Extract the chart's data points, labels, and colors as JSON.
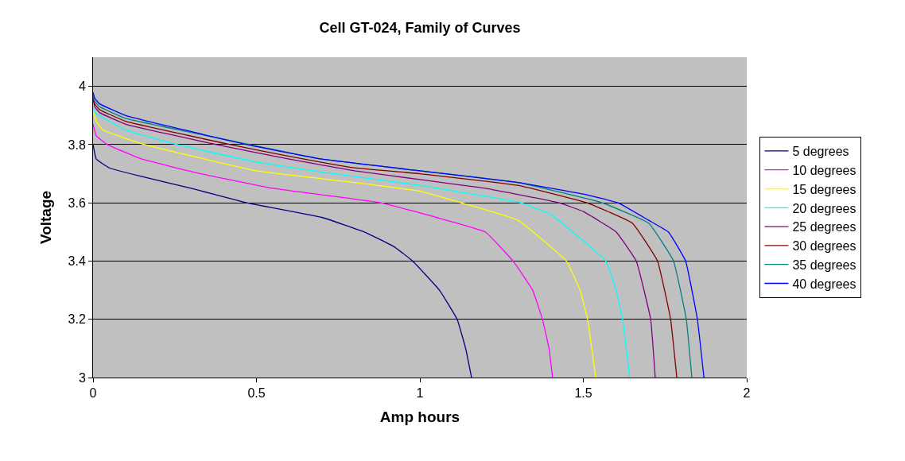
{
  "chart_data": {
    "type": "line",
    "title": "Cell GT-024, Family of Curves",
    "xlabel": "Amp hours",
    "ylabel": "Voltage",
    "xlim": [
      0,
      2
    ],
    "xticks": [
      0,
      0.5,
      1,
      1.5,
      2
    ],
    "ylim": [
      3,
      4.1
    ],
    "yticks": [
      3,
      3.2,
      3.4,
      3.6,
      3.8,
      4
    ],
    "grid": "y",
    "legend": "right",
    "marker": "none",
    "line_style": "solid",
    "series": [
      {
        "name": "5 degrees",
        "color": "#000080",
        "x": [
          0,
          0.01,
          0.05,
          0.15,
          0.3,
          0.47,
          0.7,
          0.83,
          0.92,
          0.978,
          1.06,
          1.114,
          1.14,
          1.158
        ],
        "values": [
          3.8,
          3.75,
          3.72,
          3.69,
          3.65,
          3.6,
          3.55,
          3.5,
          3.45,
          3.4,
          3.3,
          3.2,
          3.1,
          3.0
        ]
      },
      {
        "name": "10 degrees",
        "color": "#ff00ff",
        "x": [
          0,
          0.01,
          0.044,
          0.15,
          0.33,
          0.55,
          0.88,
          1.05,
          1.2,
          1.285,
          1.345,
          1.375,
          1.395,
          1.406
        ],
        "values": [
          3.87,
          3.83,
          3.8,
          3.75,
          3.7,
          3.65,
          3.6,
          3.55,
          3.5,
          3.4,
          3.3,
          3.2,
          3.1,
          3.0
        ]
      },
      {
        "name": "15 degrees",
        "color": "#ffff00",
        "x": [
          0,
          0.01,
          0.03,
          0.158,
          0.5,
          0.8,
          1.0,
          1.127,
          1.3,
          1.448,
          1.49,
          1.513,
          1.538
        ],
        "values": [
          3.92,
          3.88,
          3.85,
          3.8,
          3.71,
          3.67,
          3.64,
          3.6,
          3.54,
          3.4,
          3.3,
          3.2,
          3.0
        ]
      },
      {
        "name": "20 degrees",
        "color": "#00ffff",
        "x": [
          0,
          0.005,
          0.02,
          0.1,
          0.258,
          0.5,
          0.8,
          1.0,
          1.309,
          1.4,
          1.569,
          1.6,
          1.62,
          1.642
        ],
        "values": [
          3.93,
          3.91,
          3.9,
          3.85,
          3.8,
          3.74,
          3.69,
          3.66,
          3.6,
          3.56,
          3.4,
          3.3,
          3.2,
          3.0
        ]
      },
      {
        "name": "25 degrees",
        "color": "#800080",
        "x": [
          0,
          0.005,
          0.02,
          0.1,
          0.377,
          0.6,
          0.8,
          1.0,
          1.2,
          1.426,
          1.5,
          1.6,
          1.662,
          1.706,
          1.72
        ],
        "values": [
          3.96,
          3.93,
          3.91,
          3.87,
          3.8,
          3.75,
          3.71,
          3.68,
          3.65,
          3.6,
          3.57,
          3.5,
          3.4,
          3.2,
          3.0
        ]
      },
      {
        "name": "30 degrees",
        "color": "#800000",
        "x": [
          0,
          0.005,
          0.02,
          0.1,
          0.42,
          0.6,
          0.8,
          1.0,
          1.3,
          1.511,
          1.65,
          1.727,
          1.767,
          1.786
        ],
        "values": [
          3.97,
          3.94,
          3.92,
          3.88,
          3.8,
          3.76,
          3.72,
          3.7,
          3.66,
          3.6,
          3.53,
          3.4,
          3.2,
          3.0
        ]
      },
      {
        "name": "35 degrees",
        "color": "#008080",
        "x": [
          0,
          0.005,
          0.02,
          0.1,
          0.48,
          0.7,
          1.0,
          1.3,
          1.557,
          1.7,
          1.776,
          1.815,
          1.832
        ],
        "values": [
          3.97,
          3.95,
          3.93,
          3.89,
          3.8,
          3.75,
          3.71,
          3.67,
          3.6,
          3.53,
          3.4,
          3.2,
          3.0
        ]
      },
      {
        "name": "40 degrees",
        "color": "#0000ff",
        "x": [
          0,
          0.005,
          0.02,
          0.1,
          0.47,
          0.7,
          1.0,
          1.3,
          1.5,
          1.606,
          1.7,
          1.76,
          1.813,
          1.849,
          1.869
        ],
        "values": [
          3.98,
          3.96,
          3.94,
          3.9,
          3.8,
          3.75,
          3.71,
          3.67,
          3.63,
          3.6,
          3.54,
          3.5,
          3.4,
          3.2,
          3.0
        ]
      }
    ]
  }
}
